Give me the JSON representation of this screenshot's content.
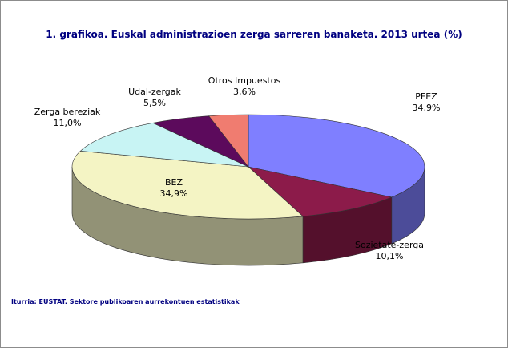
{
  "chart_data": {
    "type": "pie",
    "style": "3d",
    "title": "1. grafikoa. Euskal administrazioen zerga sarreren banaketa. 2013 urtea (%)",
    "slices": [
      {
        "label": "PFEZ",
        "value": 34.9,
        "value_text": "34,9%",
        "color": "#7f7fff"
      },
      {
        "label": "Sozietate-zerga",
        "value": 10.1,
        "value_text": "10,1%",
        "color": "#8c1b4a"
      },
      {
        "label": "BEZ",
        "value": 34.9,
        "value_text": "34,9%",
        "color": "#f4f4c4"
      },
      {
        "label": "Zerga bereziak",
        "value": 11.0,
        "value_text": "11,0%",
        "color": "#c8f4f4"
      },
      {
        "label": "Udal-zergak",
        "value": 5.5,
        "value_text": "5,5%",
        "color": "#5c0a5c"
      },
      {
        "label": "Otros Impuestos",
        "value": 3.6,
        "value_text": "3,6%",
        "color": "#f07c70"
      }
    ],
    "legend": "none"
  },
  "source": "Iturria: EUSTAT. Sektore publikoaren aurrekontuen estatistikak"
}
